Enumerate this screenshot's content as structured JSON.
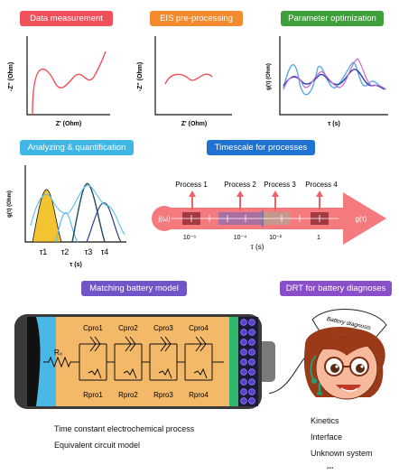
{
  "panels": {
    "data_measurement": {
      "label": "Data measurement",
      "color": "#f0505a",
      "xlabel": "Z' (Ohm)",
      "ylabel": "-Z'' (Ohm)"
    },
    "eis_preprocessing": {
      "label": "EIS pre-processing",
      "color": "#f48a2e",
      "xlabel": "Z' (Ohm)",
      "ylabel": "-Z'' (Ohm)"
    },
    "parameter_optimization": {
      "label": "Parameter optimization",
      "color": "#3f9f3a",
      "xlabel": "τ (s)",
      "ylabel": "g(τ) (Ohm)"
    },
    "analyzing": {
      "label": "Analyzing & quantification",
      "color": "#3fb6e6",
      "xlabel": "τ (s)",
      "ylabel": "g(τ) (Ohm)",
      "peaks": [
        "τ1",
        "τ2",
        "τ3",
        "τ4"
      ]
    },
    "timescale": {
      "label": "Timescale for processes",
      "color": "#1f72cf",
      "left_symbol": "j(ω)",
      "right_symbol": "g(τ)",
      "processes": [
        "Process 1",
        "Process 2",
        "Process 3",
        "Process 4"
      ],
      "ticks": [
        "10⁻⁶",
        "10⁻⁴",
        "10⁻²",
        "1"
      ],
      "axis_label": "τ (s)"
    },
    "battery_model": {
      "label": "Matching battery model",
      "color": "#7055c8",
      "r0": "R₀",
      "capacitors": [
        "Cpro1",
        "Cpro2",
        "Cpro3",
        "Cpro4"
      ],
      "resistors": [
        "Rpro1",
        "Rpro2",
        "Rpro3",
        "Rpro4"
      ]
    },
    "drt_diagnoses": {
      "label": "DRT for battery diagnoses",
      "color": "#8a4fc8",
      "cap_text": "Battery diagnosis"
    }
  },
  "bottom_left": [
    "Time constant   electrochemical process",
    "Equivalent circuit model"
  ],
  "bottom_right": [
    "Kinetics",
    "Interface",
    "Unknown system",
    "..."
  ]
}
